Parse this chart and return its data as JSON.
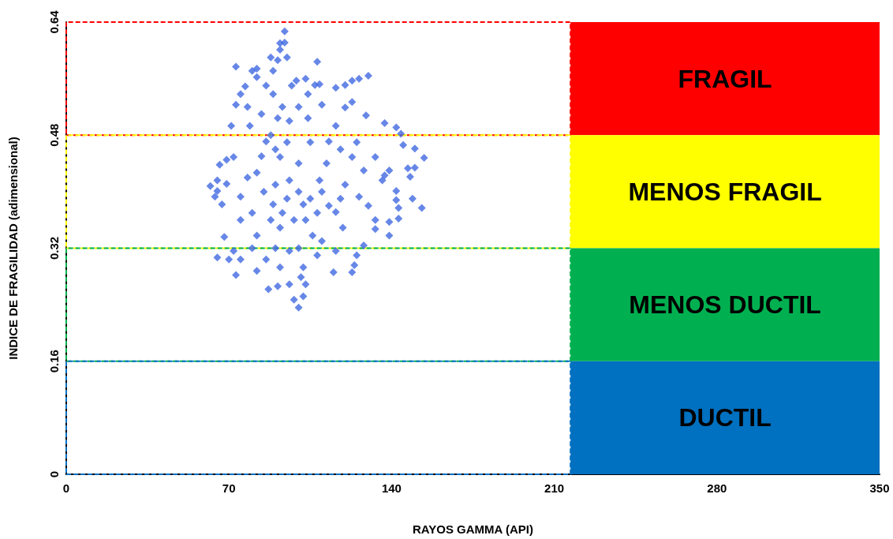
{
  "chart_data": {
    "type": "scatter",
    "xlabel": "RAYOS GAMMA (API)",
    "ylabel": "INDICE DE FRAGILIDAD (adimensional)",
    "x": [
      94,
      92,
      94,
      92,
      95,
      73,
      108,
      80,
      82,
      91,
      77,
      82,
      99,
      103,
      107,
      109,
      120,
      123,
      126,
      130,
      116,
      120,
      110,
      129,
      137,
      142,
      144,
      145,
      150,
      154,
      150,
      147,
      71,
      66,
      73,
      75,
      62,
      65,
      69,
      64,
      65,
      67,
      68,
      65,
      70,
      73,
      87,
      91,
      96,
      98,
      100,
      102,
      103,
      101,
      115,
      123,
      124,
      125,
      128,
      133,
      139,
      143,
      149,
      153,
      142,
      142,
      148,
      137,
      139,
      89,
      91,
      86,
      92,
      82,
      96,
      75,
      89,
      102,
      116,
      126,
      136,
      109,
      123,
      113,
      133,
      92,
      106,
      82,
      75,
      72,
      69,
      79,
      96,
      116,
      86,
      139,
      143,
      133,
      119,
      72,
      102,
      92,
      82,
      75,
      116,
      123,
      104,
      104,
      89,
      85,
      90,
      95,
      100,
      105,
      110,
      88,
      93,
      98,
      103,
      108,
      113,
      118,
      80,
      84,
      88,
      93,
      97,
      90,
      86,
      84,
      78,
      80,
      90,
      100,
      110,
      120,
      128,
      130,
      112,
      100,
      95,
      105,
      118,
      125,
      78,
      96,
      88,
      100,
      108
    ],
    "values": [
      0.627,
      0.61,
      0.611,
      0.601,
      0.59,
      0.577,
      0.584,
      0.571,
      0.574,
      0.586,
      0.549,
      0.562,
      0.557,
      0.56,
      0.551,
      0.552,
      0.551,
      0.557,
      0.56,
      0.564,
      0.547,
      0.519,
      0.523,
      0.508,
      0.497,
      0.491,
      0.482,
      0.466,
      0.461,
      0.448,
      0.434,
      0.433,
      0.493,
      0.438,
      0.523,
      0.538,
      0.408,
      0.416,
      0.411,
      0.393,
      0.401,
      0.382,
      0.336,
      0.307,
      0.304,
      0.282,
      0.262,
      0.266,
      0.269,
      0.247,
      0.236,
      0.252,
      0.269,
      0.279,
      0.286,
      0.286,
      0.296,
      0.31,
      0.324,
      0.347,
      0.357,
      0.362,
      0.39,
      0.377,
      0.401,
      0.388,
      0.421,
      0.423,
      0.43,
      0.538,
      0.504,
      0.471,
      0.449,
      0.427,
      0.416,
      0.393,
      0.382,
      0.382,
      0.371,
      0.393,
      0.416,
      0.416,
      0.449,
      0.471,
      0.449,
      0.349,
      0.338,
      0.338,
      0.36,
      0.449,
      0.445,
      0.493,
      0.316,
      0.316,
      0.304,
      0.338,
      0.377,
      0.36,
      0.349,
      0.316,
      0.293,
      0.293,
      0.288,
      0.304,
      0.493,
      0.527,
      0.538,
      0.504,
      0.571,
      0.4,
      0.41,
      0.39,
      0.4,
      0.39,
      0.4,
      0.36,
      0.37,
      0.36,
      0.36,
      0.37,
      0.38,
      0.39,
      0.37,
      0.45,
      0.48,
      0.52,
      0.55,
      0.46,
      0.55,
      0.51,
      0.42,
      0.32,
      0.32,
      0.32,
      0.33,
      0.41,
      0.43,
      0.38,
      0.44,
      0.44,
      0.47,
      0.47,
      0.46,
      0.47,
      0.52,
      0.5,
      0.59,
      0.52,
      0.31
    ],
    "color": "#4169e1",
    "marker": "diamond",
    "xlim": [
      0,
      350
    ],
    "xticks": [
      0,
      70,
      140,
      210,
      280,
      350
    ],
    "ylim": [
      0,
      0.64
    ],
    "yticks": [
      0,
      0.16,
      0.32,
      0.48,
      0.64
    ],
    "bands": [
      {
        "axis": "y",
        "from": 0.48,
        "to": 0.64,
        "label": "FRAGIL",
        "color": "#ff0000"
      },
      {
        "axis": "y",
        "from": 0.32,
        "to": 0.48,
        "label": "MENOS FRAGIL",
        "color": "#ffff00"
      },
      {
        "axis": "y",
        "from": 0.16,
        "to": 0.32,
        "label": "MENOS DUCTIL",
        "color": "#00b050"
      },
      {
        "axis": "y",
        "from": 0,
        "to": 0.16,
        "label": "DUCTIL",
        "color": "#0070c0"
      }
    ],
    "grid": false
  }
}
